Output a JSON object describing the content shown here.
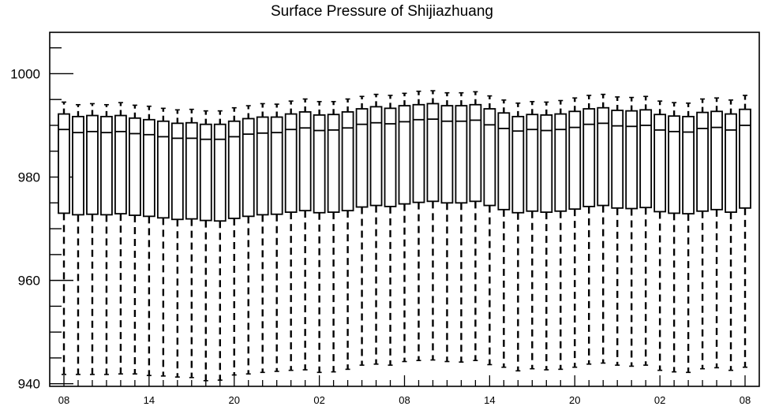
{
  "chart_data": {
    "type": "box",
    "title": "Surface Pressure of Shijiazhuang",
    "xlabel": "",
    "ylabel": "",
    "ylim": [
      939.5,
      1008
    ],
    "y_ticks": [
      940,
      960,
      980,
      1000
    ],
    "x_tick_labels": [
      "08",
      "14",
      "20",
      "02",
      "08",
      "14",
      "20",
      "02",
      "08"
    ],
    "x_tick_box_index": [
      0,
      6,
      12,
      18,
      24,
      30,
      36,
      42,
      48
    ],
    "grid": false,
    "legend": "none",
    "series": [
      {
        "q1": [
          973.0,
          972.7,
          972.8,
          972.7,
          972.9,
          972.6,
          972.4,
          972.1,
          971.8,
          971.9,
          971.6,
          971.5,
          972.0,
          972.4,
          972.7,
          972.8,
          973.2,
          973.5,
          973.1,
          973.2,
          973.5,
          974.2,
          974.5,
          974.3,
          974.8,
          975.1,
          975.3,
          975.0,
          975.0,
          975.3,
          974.5,
          973.7,
          973.1,
          973.4,
          973.2,
          973.4,
          973.8,
          974.3,
          974.5,
          974.0,
          973.9,
          974.1,
          973.3,
          973.0,
          972.9,
          973.4,
          973.7,
          973.2,
          974.0
        ],
        "median": [
          989.2,
          988.6,
          988.8,
          988.6,
          988.8,
          988.4,
          988.2,
          987.8,
          987.5,
          987.5,
          987.3,
          987.3,
          987.8,
          988.3,
          988.5,
          988.6,
          989.2,
          989.5,
          989.0,
          989.1,
          989.5,
          990.2,
          990.5,
          990.3,
          990.7,
          991.1,
          991.2,
          990.8,
          990.8,
          991.0,
          990.1,
          989.4,
          988.9,
          989.2,
          989.0,
          989.2,
          989.6,
          990.2,
          990.4,
          989.9,
          989.8,
          990.0,
          989.1,
          988.8,
          988.7,
          989.4,
          989.6,
          989.1,
          990.0
        ],
        "q3": [
          992.2,
          991.7,
          991.9,
          991.7,
          991.9,
          991.4,
          991.1,
          990.8,
          990.4,
          990.5,
          990.2,
          990.2,
          990.8,
          991.3,
          991.6,
          991.6,
          992.2,
          992.6,
          992.0,
          992.1,
          992.6,
          993.2,
          993.6,
          993.3,
          993.8,
          994.0,
          994.2,
          993.8,
          993.8,
          994.0,
          993.2,
          992.4,
          991.7,
          992.1,
          992.0,
          992.2,
          992.7,
          993.2,
          993.4,
          992.9,
          992.8,
          993.0,
          992.1,
          991.8,
          991.7,
          992.5,
          992.7,
          992.2,
          993.1
        ],
        "whisker_high": [
          994.5,
          994.0,
          994.2,
          994.0,
          994.4,
          993.9,
          993.7,
          993.3,
          993.0,
          993.1,
          992.8,
          992.8,
          993.4,
          993.8,
          994.2,
          994.1,
          994.7,
          995.1,
          994.6,
          994.6,
          995.1,
          995.6,
          996.0,
          995.8,
          996.2,
          996.6,
          996.7,
          996.3,
          996.3,
          996.5,
          995.7,
          994.9,
          994.3,
          994.6,
          994.5,
          994.8,
          995.3,
          995.8,
          996.0,
          995.5,
          995.4,
          995.6,
          994.7,
          994.4,
          994.3,
          995.1,
          995.3,
          994.9,
          995.8
        ],
        "whisker_low": [
          941.8,
          941.8,
          941.8,
          941.8,
          941.9,
          941.9,
          941.6,
          941.5,
          941.3,
          941.2,
          940.6,
          940.7,
          941.7,
          941.9,
          942.2,
          942.4,
          942.6,
          942.7,
          942.2,
          942.3,
          942.8,
          943.6,
          943.8,
          943.6,
          944.3,
          944.5,
          944.6,
          944.3,
          944.2,
          944.5,
          943.7,
          943.2,
          942.5,
          942.9,
          942.7,
          942.8,
          943.2,
          943.8,
          944.0,
          943.6,
          943.4,
          943.6,
          942.6,
          942.3,
          942.2,
          942.9,
          943.1,
          942.6,
          943.2
        ]
      }
    ]
  }
}
